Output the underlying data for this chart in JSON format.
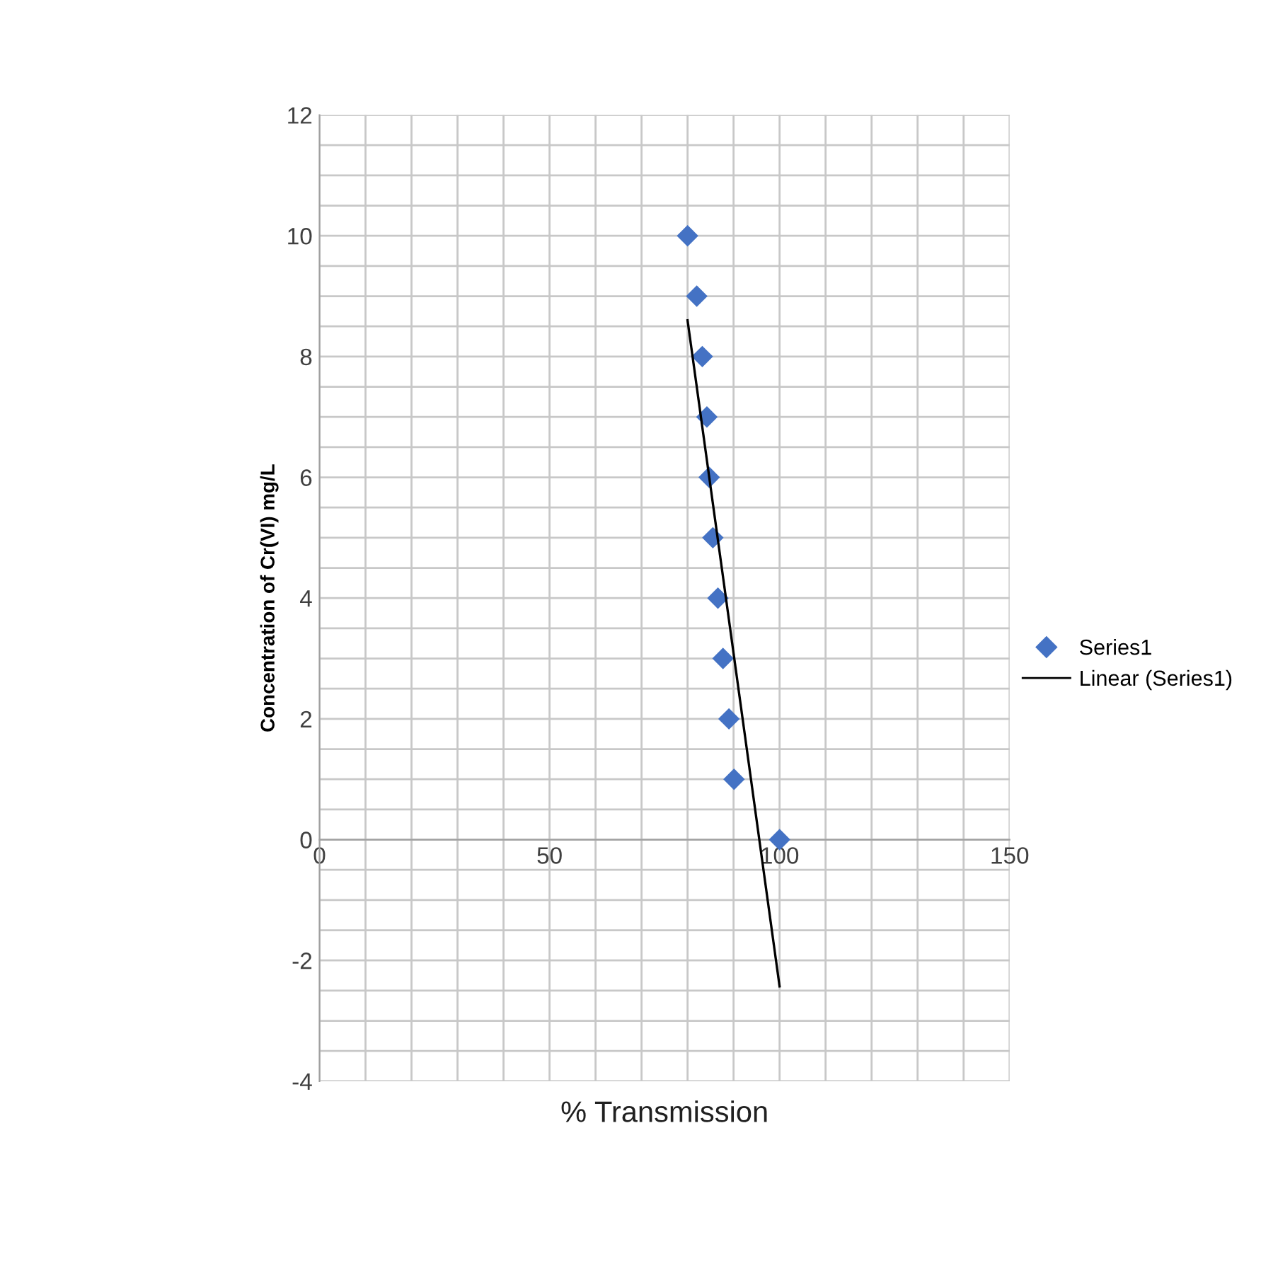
{
  "chart_data": {
    "type": "scatter",
    "xlabel": "% Transmission",
    "ylabel": "Concentration of Cr(VI) mg/L",
    "series": [
      {
        "name": "Series1",
        "color": "#4472c4",
        "marker": "diamond",
        "x": [
          80.0,
          82,
          83.2,
          84.2,
          84.7,
          85.5,
          86.6,
          87.7,
          89,
          90.1,
          100
        ],
        "values": [
          10,
          9,
          8,
          7,
          6,
          5,
          4,
          3,
          2,
          1,
          0
        ]
      },
      {
        "name": "Linear (Series1)",
        "type": "line",
        "color": "#000000",
        "marker": "none",
        "line_style": "solid",
        "x": [
          80,
          100
        ],
        "values": [
          8.6,
          -2.43
        ]
      }
    ],
    "xlim": [
      0,
      150
    ],
    "ylim": [
      -4,
      12
    ],
    "xticks": [
      0,
      {
        "value": 10,
        "label": null
      },
      {
        "value": 20,
        "label": null
      },
      {
        "value": 30,
        "label": null
      },
      {
        "value": 40,
        "label": null
      },
      50,
      {
        "value": 60,
        "label": null
      },
      {
        "value": 70,
        "label": null
      },
      {
        "value": 80,
        "label": null
      },
      {
        "value": 90,
        "label": null
      },
      100,
      {
        "value": 110,
        "label": null
      },
      {
        "value": 120,
        "label": null
      },
      {
        "value": 130,
        "label": null
      },
      {
        "value": 140,
        "label": null
      },
      150
    ],
    "yticks": [
      -4,
      {
        "value": -3.5,
        "label": null
      },
      {
        "value": -3,
        "label": null
      },
      {
        "value": -2.5,
        "label": null
      },
      -2,
      {
        "value": -1.5,
        "label": null
      },
      {
        "value": -1,
        "label": null
      },
      {
        "value": -0.5,
        "label": null
      },
      0,
      {
        "value": 0.5,
        "label": null
      },
      {
        "value": 1,
        "label": null
      },
      {
        "value": 1.5,
        "label": null
      },
      2,
      {
        "value": 2.5,
        "label": null
      },
      {
        "value": 3,
        "label": null
      },
      {
        "value": 3.5,
        "label": null
      },
      4,
      {
        "value": 4.5,
        "label": null
      },
      {
        "value": 5,
        "label": null
      },
      {
        "value": 5.5,
        "label": null
      },
      6,
      {
        "value": 6.5,
        "label": null
      },
      {
        "value": 7,
        "label": null
      },
      {
        "value": 7.5,
        "label": null
      },
      8,
      {
        "value": 8.5,
        "label": null
      },
      {
        "value": 9,
        "label": null
      },
      {
        "value": 9.5,
        "label": null
      },
      10,
      {
        "value": 10.5,
        "label": null
      },
      {
        "value": 11,
        "label": null
      },
      {
        "value": 11.5,
        "label": null
      },
      12
    ],
    "grid": true,
    "legend": "right"
  }
}
